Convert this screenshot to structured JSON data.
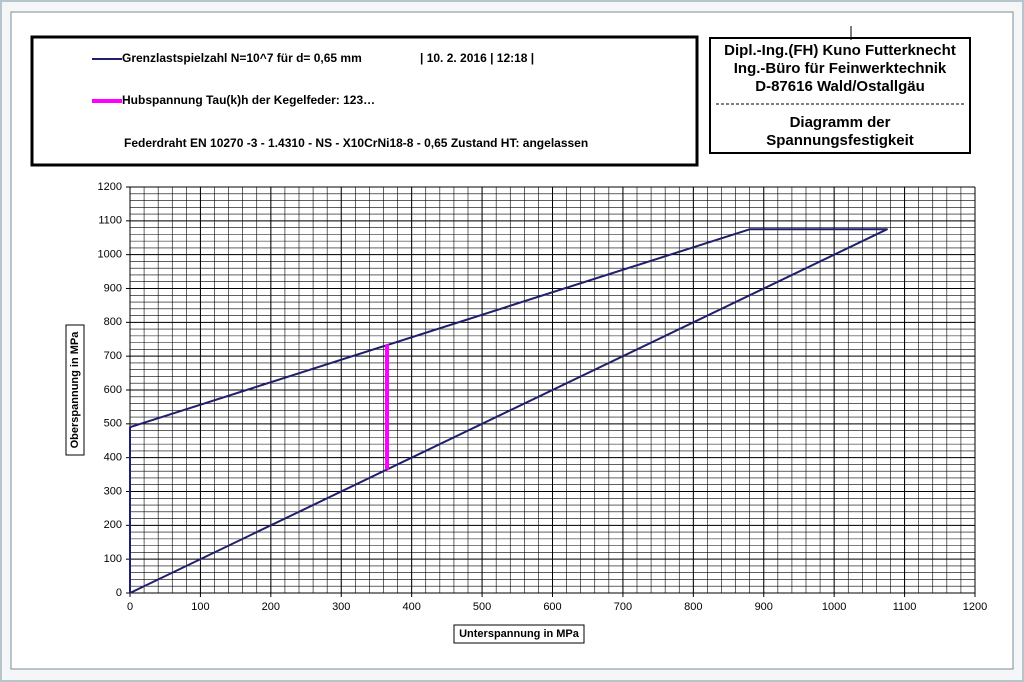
{
  "chart_data": {
    "type": "line",
    "header_lines": [
      "Dipl.-Ing.(FH) Kuno Futterknecht",
      "Ing.-Büro für Feinwerktechnik",
      "D-87616 Wald/Ostallgäu"
    ],
    "title_lines": [
      "Diagramm der",
      "Spannungsfestigkeit"
    ],
    "annotations": [
      "| 10. 2. 2016 | 12:18 |",
      "Federdraht EN 10270  -3 - 1.4310 - NS - X10CrNi18-8 - 0,65 Zustand HT: angelassen"
    ],
    "x_label": "Unterspannung in MPa",
    "y_label": "Oberspannung in MPa",
    "xlim": [
      0,
      1200
    ],
    "ylim": [
      0,
      1200
    ],
    "xticks": [
      0,
      100,
      200,
      300,
      400,
      500,
      600,
      700,
      800,
      900,
      1000,
      1100,
      1200
    ],
    "yticks": [
      0,
      100,
      200,
      300,
      400,
      500,
      600,
      700,
      800,
      900,
      1000,
      1100,
      1200
    ],
    "grid": true,
    "minor_grid_step": 20,
    "series": [
      {
        "name": "Grenzlastspielzahl N=10^7 für d= 0,65 mm",
        "color": "#1f1f6e",
        "width": 2,
        "x": [
          0,
          0,
          880,
          1075,
          0
        ],
        "values": [
          0,
          490,
          1075,
          1075,
          0
        ]
      },
      {
        "name": "Hubspannung  Tau(k)h der Kegelfeder: 123…",
        "color": "#ff00ff",
        "width": 4,
        "x": [
          365,
          365
        ],
        "values": [
          365,
          735
        ]
      }
    ]
  }
}
